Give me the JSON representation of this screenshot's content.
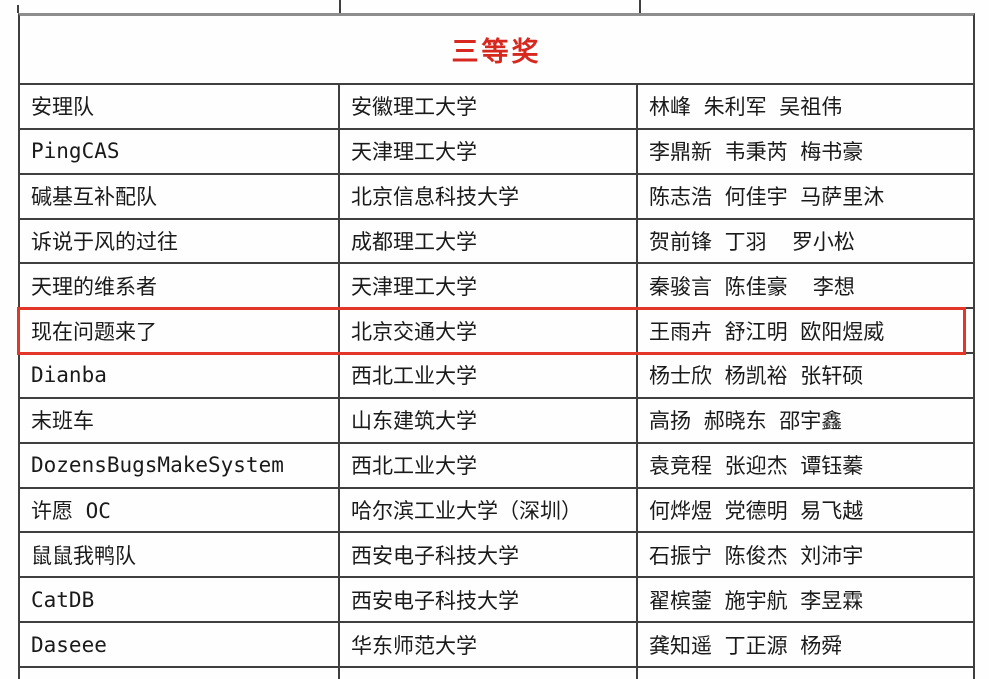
{
  "theme": {
    "header_red": "#d6281e",
    "highlight_red": "#e2362a",
    "border_dark": "#3f3f3f",
    "border_top_gray": "#8d8d8d",
    "text": "#1a1a1a",
    "background": "#fefefe"
  },
  "table": {
    "title": "三等奖",
    "highlighted_team": "现在问题来了",
    "rows": [
      {
        "team": "安理队",
        "university": "安徽理工大学",
        "members": "林峰 朱利军 吴祖伟",
        "highlighted": false
      },
      {
        "team": "PingCAS",
        "university": "天津理工大学",
        "members": "李鼎新 韦秉芮 梅书豪",
        "highlighted": false
      },
      {
        "team": "碱基互补配队",
        "university": "北京信息科技大学",
        "members": "陈志浩 何佳宇 马萨里沐",
        "highlighted": false
      },
      {
        "team": "诉说于风的过往",
        "university": "成都理工大学",
        "members": "贺前锋 丁羽  罗小松",
        "highlighted": false
      },
      {
        "team": "天理的维系者",
        "university": "天津理工大学",
        "members": "秦骏言 陈佳豪  李想",
        "highlighted": false
      },
      {
        "team": "现在问题来了",
        "university": "北京交通大学",
        "members": "王雨卉 舒江明 欧阳煜威",
        "highlighted": true
      },
      {
        "team": "Dianba",
        "university": "西北工业大学",
        "members": "杨士欣 杨凯裕 张轩硕",
        "highlighted": false
      },
      {
        "team": "末班车",
        "university": "山东建筑大学",
        "members": "高扬 郝晓东 邵宇鑫",
        "highlighted": false
      },
      {
        "team": "DozensBugsMakeSystem",
        "university": "西北工业大学",
        "members": "袁竞程 张迎杰 谭钰蓁",
        "highlighted": false
      },
      {
        "team": "许愿 OC",
        "university": "哈尔滨工业大学（深圳）",
        "members": "何烨煜 党德明 易飞越",
        "highlighted": false
      },
      {
        "team": "鼠鼠我鸭队",
        "university": "西安电子科技大学",
        "members": "石振宁 陈俊杰 刘沛宇",
        "highlighted": false
      },
      {
        "team": "CatDB",
        "university": "西安电子科技大学",
        "members": "翟槟蓥 施宇航 李昱霖",
        "highlighted": false
      },
      {
        "team": "Daseee",
        "university": "华东师范大学",
        "members": "龚知遥 丁正源 杨舜",
        "highlighted": false
      }
    ]
  }
}
